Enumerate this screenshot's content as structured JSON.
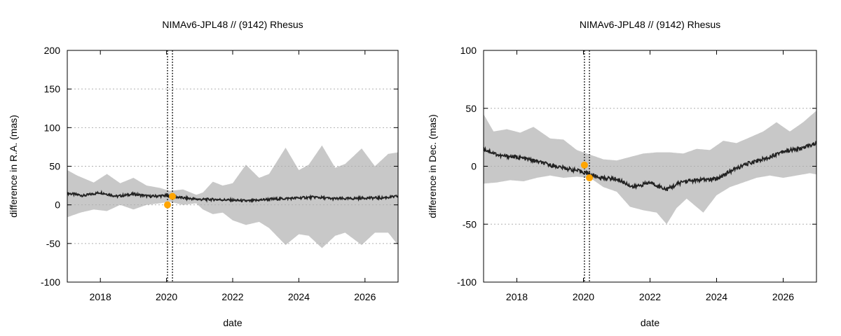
{
  "chart_data": [
    {
      "type": "line",
      "title": "NIMAv6-JPL48 // (9142) Rhesus",
      "xlabel": "date",
      "ylabel": "difference in R.A. (mas)",
      "xlim": [
        2017.0,
        2027.0
      ],
      "ylim": [
        -100,
        200
      ],
      "xticks": [
        2018,
        2020,
        2022,
        2024,
        2026
      ],
      "yticks": [
        -100,
        -50,
        0,
        50,
        100,
        150,
        200
      ],
      "grid": true,
      "vlines": [
        2020.03,
        2020.18
      ],
      "series": [
        {
          "kind": "band-upper",
          "x": [
            2017.0,
            2017.3,
            2017.8,
            2018.2,
            2018.6,
            2019.0,
            2019.4,
            2019.8,
            2020.1,
            2020.5,
            2020.9,
            2021.1,
            2021.4,
            2021.7,
            2022.0,
            2022.4,
            2022.8,
            2023.1,
            2023.6,
            2024.0,
            2024.3,
            2024.7,
            2025.1,
            2025.4,
            2025.9,
            2026.3,
            2026.7,
            2027.0
          ],
          "values": [
            45,
            38,
            29,
            40,
            28,
            35,
            25,
            22,
            18,
            20,
            13,
            16,
            30,
            25,
            28,
            52,
            35,
            40,
            74,
            45,
            52,
            77,
            48,
            53,
            73,
            50,
            66,
            68
          ],
          "color": "#c8c8c8"
        },
        {
          "kind": "band-lower",
          "x": [
            2017.0,
            2017.4,
            2017.8,
            2018.2,
            2018.6,
            2019.0,
            2019.4,
            2019.8,
            2020.1,
            2020.5,
            2020.9,
            2021.1,
            2021.4,
            2021.7,
            2022.0,
            2022.4,
            2022.8,
            2023.1,
            2023.6,
            2024.0,
            2024.3,
            2024.7,
            2025.1,
            2025.4,
            2025.9,
            2026.3,
            2026.7,
            2027.0
          ],
          "values": [
            -16,
            -10,
            -6,
            -8,
            0,
            -6,
            0,
            2,
            4,
            0,
            2,
            -6,
            -12,
            -10,
            -20,
            -26,
            -22,
            -30,
            -52,
            -38,
            -40,
            -56,
            -40,
            -36,
            -52,
            -36,
            -36,
            -52
          ],
          "color": "#c8c8c8"
        },
        {
          "kind": "line",
          "x": [
            2017.0,
            2017.5,
            2018.0,
            2018.5,
            2019.0,
            2019.5,
            2020.0,
            2020.5,
            2021.0,
            2021.5,
            2022.0,
            2022.5,
            2023.0,
            2023.5,
            2024.0,
            2024.5,
            2025.0,
            2025.5,
            2026.0,
            2026.5,
            2027.0
          ],
          "values": [
            15,
            12,
            16,
            11,
            14,
            11,
            12,
            9,
            7,
            7,
            6,
            5,
            7,
            8,
            9,
            10,
            8,
            8,
            9,
            9,
            11
          ],
          "color": "#222222"
        },
        {
          "kind": "points",
          "x": [
            2020.03,
            2020.18
          ],
          "values": [
            0,
            11
          ],
          "color": "#ffa500"
        }
      ]
    },
    {
      "type": "line",
      "title": "NIMAv6-JPL48 // (9142) Rhesus",
      "xlabel": "date",
      "ylabel": "difference in Dec. (mas)",
      "xlim": [
        2017.0,
        2027.0
      ],
      "ylim": [
        -100,
        100
      ],
      "xticks": [
        2018,
        2020,
        2022,
        2024,
        2026
      ],
      "yticks": [
        -100,
        -50,
        0,
        50,
        100
      ],
      "grid": true,
      "vlines": [
        2020.03,
        2020.18
      ],
      "series": [
        {
          "kind": "band-upper",
          "x": [
            2017.0,
            2017.3,
            2017.7,
            2018.1,
            2018.5,
            2019.0,
            2019.4,
            2019.8,
            2020.2,
            2020.6,
            2021.0,
            2021.4,
            2021.8,
            2022.2,
            2022.6,
            2023.0,
            2023.4,
            2023.8,
            2024.2,
            2024.6,
            2025.0,
            2025.4,
            2025.8,
            2026.2,
            2026.6,
            2027.0
          ],
          "values": [
            45,
            30,
            32,
            29,
            34,
            24,
            23,
            14,
            10,
            6,
            5,
            8,
            11,
            12,
            12,
            11,
            15,
            14,
            22,
            20,
            25,
            30,
            38,
            30,
            38,
            48
          ],
          "color": "#c8c8c8"
        },
        {
          "kind": "band-lower",
          "x": [
            2017.0,
            2017.4,
            2017.8,
            2018.2,
            2018.6,
            2019.0,
            2019.4,
            2019.8,
            2020.2,
            2020.6,
            2021.0,
            2021.4,
            2021.8,
            2022.2,
            2022.5,
            2022.8,
            2023.1,
            2023.6,
            2024.0,
            2024.4,
            2024.8,
            2025.2,
            2025.6,
            2026.0,
            2026.4,
            2026.8,
            2027.0
          ],
          "values": [
            -15,
            -14,
            -12,
            -13,
            -10,
            -8,
            -10,
            -9,
            -10,
            -18,
            -22,
            -35,
            -38,
            -40,
            -50,
            -36,
            -28,
            -40,
            -25,
            -18,
            -14,
            -10,
            -8,
            -10,
            -8,
            -6,
            -7
          ],
          "color": "#c8c8c8"
        },
        {
          "kind": "line",
          "x": [
            2017.0,
            2017.5,
            2018.0,
            2018.5,
            2019.0,
            2019.5,
            2020.0,
            2020.5,
            2021.0,
            2021.5,
            2022.0,
            2022.5,
            2023.0,
            2023.5,
            2024.0,
            2024.5,
            2025.0,
            2025.5,
            2026.0,
            2026.5,
            2027.0
          ],
          "values": [
            15,
            9,
            8,
            5,
            1,
            -2,
            -5,
            -10,
            -11,
            -18,
            -14,
            -20,
            -13,
            -12,
            -11,
            -3,
            3,
            7,
            13,
            15,
            20
          ],
          "color": "#222222"
        },
        {
          "kind": "points",
          "x": [
            2020.03,
            2020.18
          ],
          "values": [
            1,
            -10
          ],
          "color": "#ffa500"
        }
      ]
    }
  ]
}
